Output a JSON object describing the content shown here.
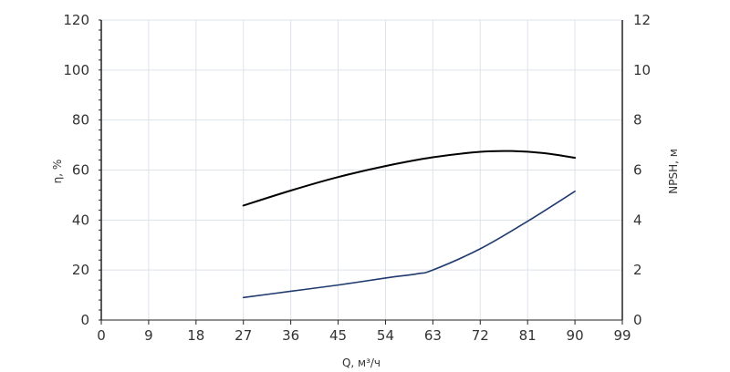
{
  "chart_data": {
    "type": "line",
    "xlabel": "Q, м³/ч",
    "ylabel_left": "η, %",
    "ylabel_right": "NPSH, м",
    "xlim": [
      0,
      99
    ],
    "ylim_left": [
      0,
      120
    ],
    "ylim_right": [
      0,
      12
    ],
    "x_ticks": [
      "0",
      "9",
      "18",
      "27",
      "36",
      "45",
      "54",
      "63",
      "72",
      "81",
      "90",
      "99"
    ],
    "y_left_ticks": [
      "0",
      "20",
      "40",
      "60",
      "80",
      "100",
      "120"
    ],
    "y_right_ticks": [
      "0",
      "2",
      "4",
      "6",
      "8",
      "10",
      "12"
    ],
    "grid": true,
    "colors": {
      "efficiency": "#000000",
      "npsh": "#1f3a6e",
      "grid": "#dde3ec",
      "axis": "#222222"
    },
    "series": [
      {
        "axis": "left",
        "x": [
          27,
          36,
          45,
          54,
          63,
          72,
          78,
          84,
          90
        ],
        "values": [
          45.8,
          51.8,
          57.2,
          61.6,
          65.1,
          67.3,
          67.6,
          66.8,
          64.9
        ]
      },
      {
        "axis": "right",
        "x": [
          27,
          36,
          45,
          54,
          60,
          63,
          72,
          81,
          90
        ],
        "values": [
          0.9,
          1.15,
          1.4,
          1.68,
          1.85,
          2.0,
          2.85,
          3.95,
          5.15
        ]
      }
    ]
  }
}
